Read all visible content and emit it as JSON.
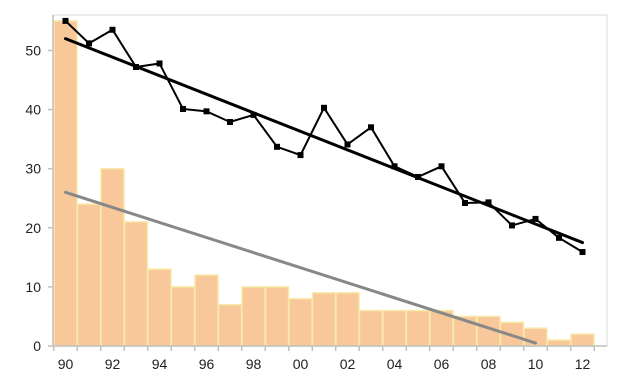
{
  "chart_data": {
    "type": "bar",
    "x_tick_labels": [
      "90",
      "92",
      "94",
      "96",
      "98",
      "00",
      "02",
      "04",
      "06",
      "08",
      "10",
      "12"
    ],
    "y_tick_labels": [
      "0",
      "10",
      "20",
      "30",
      "40",
      "50"
    ],
    "ylim": [
      0,
      56
    ],
    "grid": false,
    "legend": "none",
    "categories": [
      "1990",
      "1991",
      "1992",
      "1993",
      "1994",
      "1995",
      "1996",
      "1997",
      "1998",
      "1999",
      "2000",
      "2001",
      "2002",
      "2003",
      "2004",
      "2005",
      "2006",
      "2007",
      "2008",
      "2009",
      "2010",
      "2011",
      "2012"
    ],
    "bars": {
      "values": [
        55,
        24,
        30,
        21,
        13,
        10,
        12,
        7,
        10,
        10,
        8,
        9,
        9,
        6,
        6,
        6,
        6,
        5,
        5,
        4,
        3,
        1,
        2
      ],
      "color": "#f8c89a",
      "edge_color": "#f7e9a6"
    },
    "line": {
      "values": [
        55,
        51.2,
        53.5,
        47.2,
        47.8,
        40.1,
        39.7,
        37.9,
        39.1,
        33.7,
        32.3,
        40.3,
        34.1,
        37.0,
        30.4,
        28.6,
        30.4,
        24.2,
        24.3,
        20.4,
        21.5,
        18.3,
        15.9
      ],
      "color": "#000000",
      "marker": "square"
    },
    "trend_lines": [
      {
        "from": [
          "1990",
          52
        ],
        "to": [
          "2012",
          17.5
        ],
        "color": "#000000"
      },
      {
        "from": [
          "1990",
          26
        ],
        "to": [
          "2010",
          0.5
        ],
        "color": "#888888"
      }
    ],
    "axis_color": "#bfbfbf"
  }
}
